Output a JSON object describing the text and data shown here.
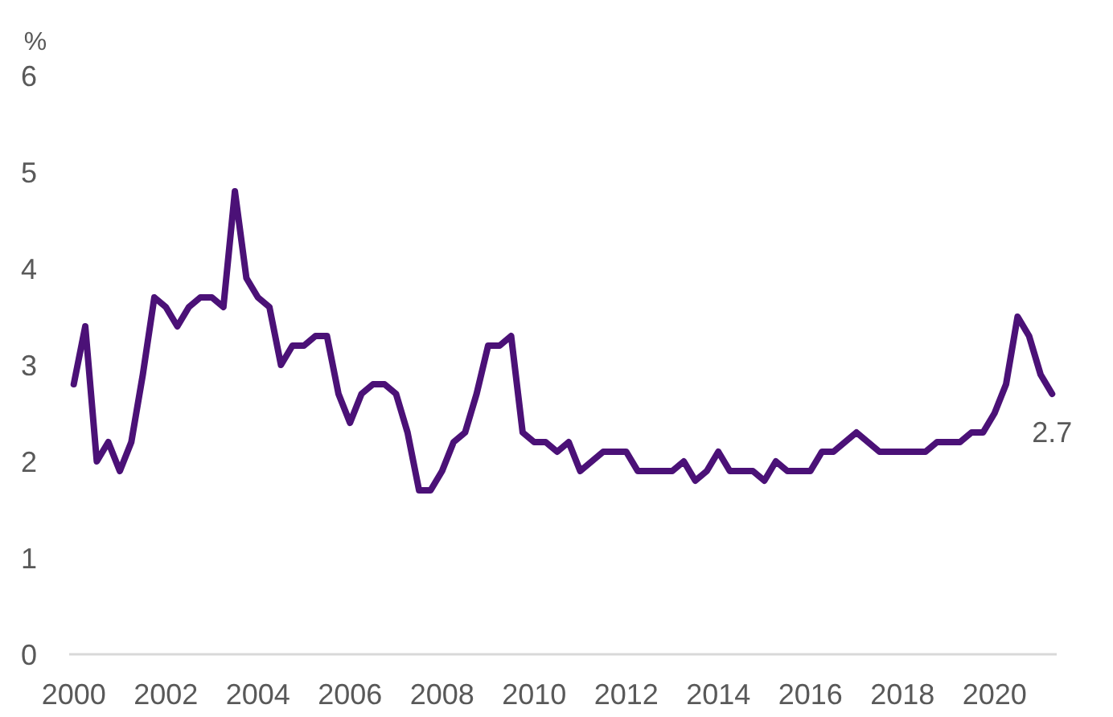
{
  "chart_data": {
    "type": "line",
    "ylabel": "%",
    "x": [
      2000,
      2000.25,
      2000.5,
      2000.75,
      2001,
      2001.25,
      2001.5,
      2001.75,
      2002,
      2002.25,
      2002.5,
      2002.75,
      2003,
      2003.25,
      2003.5,
      2003.75,
      2004,
      2004.25,
      2004.5,
      2004.75,
      2005,
      2005.25,
      2005.5,
      2005.75,
      2006,
      2006.25,
      2006.5,
      2006.75,
      2007,
      2007.25,
      2007.5,
      2007.75,
      2008,
      2008.25,
      2008.5,
      2008.75,
      2009,
      2009.25,
      2009.5,
      2009.75,
      2010,
      2010.25,
      2010.5,
      2010.75,
      2011,
      2011.25,
      2011.5,
      2011.75,
      2012,
      2012.25,
      2012.5,
      2012.75,
      2013,
      2013.25,
      2013.5,
      2013.75,
      2014,
      2014.25,
      2014.5,
      2014.75,
      2015,
      2015.25,
      2015.5,
      2015.75,
      2016,
      2016.25,
      2016.5,
      2016.75,
      2017,
      2017.25,
      2017.5,
      2017.75,
      2018,
      2018.25,
      2018.5,
      2018.75,
      2019,
      2019.25,
      2019.5,
      2019.75,
      2020,
      2020.25,
      2020.5,
      2020.75,
      2021,
      2021.25
    ],
    "series": [
      {
        "color": "#4b1177",
        "values": [
          2.8,
          3.4,
          2.0,
          2.2,
          1.9,
          2.2,
          2.9,
          3.7,
          3.6,
          3.4,
          3.6,
          3.7,
          3.7,
          3.6,
          4.8,
          3.9,
          3.7,
          3.6,
          3.0,
          3.2,
          3.2,
          3.3,
          3.3,
          2.7,
          2.4,
          2.7,
          2.8,
          2.8,
          2.7,
          2.3,
          1.7,
          1.7,
          1.9,
          2.2,
          2.3,
          2.7,
          3.2,
          3.2,
          3.3,
          2.3,
          2.2,
          2.2,
          2.1,
          2.2,
          1.9,
          2.0,
          2.1,
          2.1,
          2.1,
          1.9,
          1.9,
          1.9,
          1.9,
          2.0,
          1.8,
          1.9,
          2.1,
          1.9,
          1.9,
          1.9,
          1.8,
          2.0,
          1.9,
          1.9,
          1.9,
          2.1,
          2.1,
          2.2,
          2.3,
          2.2,
          2.1,
          2.1,
          2.1,
          2.1,
          2.1,
          2.2,
          2.2,
          2.2,
          2.3,
          2.3,
          2.5,
          2.8,
          3.5,
          3.3,
          2.9,
          2.7
        ]
      }
    ],
    "xlim": [
      1999.9,
      2021.35
    ],
    "xticks": [
      2000,
      2002,
      2004,
      2006,
      2008,
      2010,
      2012,
      2014,
      2016,
      2018,
      2020
    ],
    "ylim": [
      0,
      6
    ],
    "yticks": [
      0,
      1,
      2,
      3,
      4,
      5,
      6
    ],
    "annotations": [
      {
        "text": "2.7",
        "x": 2021.25,
        "y": 2.7
      }
    ],
    "grid": false,
    "legend": false,
    "marker": "none",
    "line_style": "solid"
  }
}
